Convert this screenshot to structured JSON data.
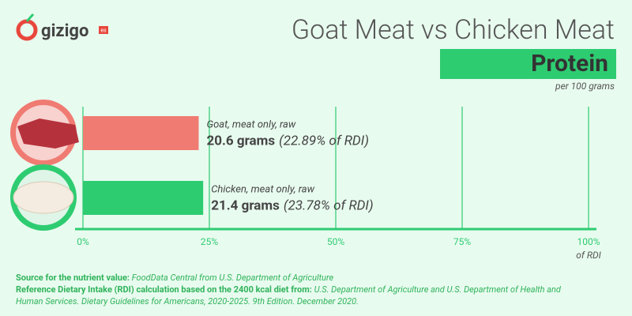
{
  "logo": "gizigo",
  "logo_badge": "es",
  "chart_data": {
    "type": "hbar",
    "title": "Goat Meat vs Chicken Meat",
    "subtitle": "Protein",
    "unit_note": "per 100 grams",
    "categories": [
      "Goat, meat only, raw",
      "Chicken, meat only, raw"
    ],
    "values": [
      22.89,
      23.78
    ],
    "amount_labels": [
      "20.6 grams",
      "21.4 grams"
    ],
    "value_labels": [
      "(22.89% of RDI)",
      "(23.78% of RDI)"
    ],
    "colors": [
      "#f07b72",
      "#2ecc71"
    ],
    "xlim": [
      0,
      100
    ],
    "xticks": [
      {
        "value": 0,
        "label": "0%"
      },
      {
        "value": 25,
        "label": "25%"
      },
      {
        "value": 50,
        "label": "50%"
      },
      {
        "value": 75,
        "label": "75%"
      },
      {
        "value": 100,
        "label": "100%"
      }
    ],
    "x_label": "of RDI",
    "grid": true
  },
  "notes": [
    {
      "label": "Source for the nutrient value:",
      "text": "FoodData Central from U.S. Department of Agriculture"
    },
    {
      "label": "Reference Dietary Intake (RDI) calculation based on the 2400 kcal diet from:",
      "text": "U.S. Department of Agriculture and U.S. Department of Health and Human Services. Dietary Guidelines for Americans, 2020-2025. 9th Edition. December 2020."
    }
  ]
}
